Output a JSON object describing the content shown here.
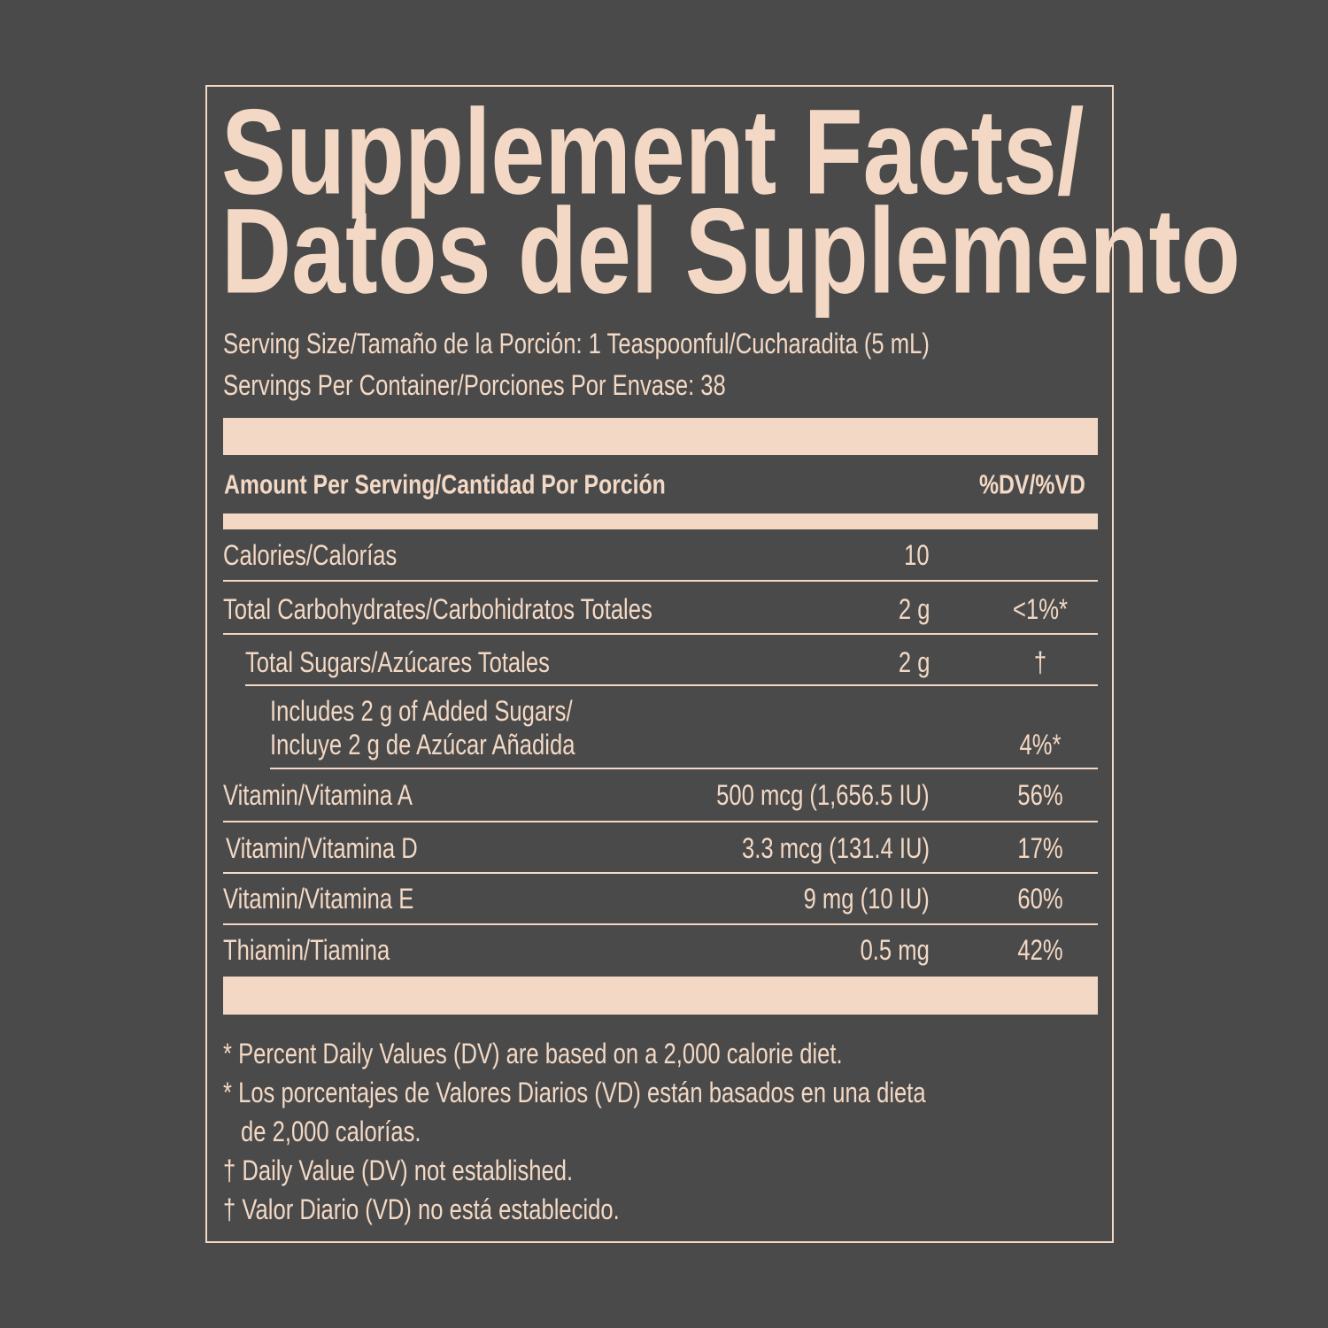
{
  "title": [
    "Supplement Facts/",
    "Datos del Suplemento"
  ],
  "serving": [
    "Serving Size/Tamaño de la Porción: 1 Teaspoonful/Cucharadita (5 mL)",
    "Servings Per Container/Porciones Por Envase: 38"
  ],
  "header": {
    "amount": "Amount Per Serving/Cantidad Por Porción",
    "dv": "%DV/%VD"
  },
  "rows": [
    {
      "name": "Calories/Calorías",
      "amount": "10"
    },
    {
      "name": "Total Carbohydrates/Carbohidratos Totales",
      "amount": "2 g",
      "dv": "<1%*"
    },
    {
      "name": "Total Sugars/Azúcares Totales",
      "amount": "2 g",
      "dv": "†"
    },
    {
      "name": [
        "Includes 2 g of Added Sugars/",
        "Incluye 2 g de Azúcar Añadida"
      ],
      "dv": "4%*"
    },
    {
      "name": "Vitamin/Vitamina A",
      "amount": "500 mcg (1,656.5 IU)",
      "dv": "56%"
    },
    {
      "name": "Vitamin/Vitamina D",
      "amount": "3.3 mcg (131.4 IU)",
      "dv": "17%"
    },
    {
      "name": "Vitamin/Vitamina E",
      "amount": "9 mg (10 IU)",
      "dv": "60%"
    },
    {
      "name": "Thiamin/Tiamina",
      "amount": "0.5 mg",
      "dv": "42%"
    }
  ],
  "footnotes": [
    "* Percent Daily Values (DV) are based on a 2,000 calorie diet.",
    [
      "* Los porcentajes de Valores Diarios (VD) están basados en una dieta",
      "de 2,000 calorías."
    ],
    "† Daily Value (DV) not established.",
    "† Valor Diario (VD) no está establecido."
  ]
}
